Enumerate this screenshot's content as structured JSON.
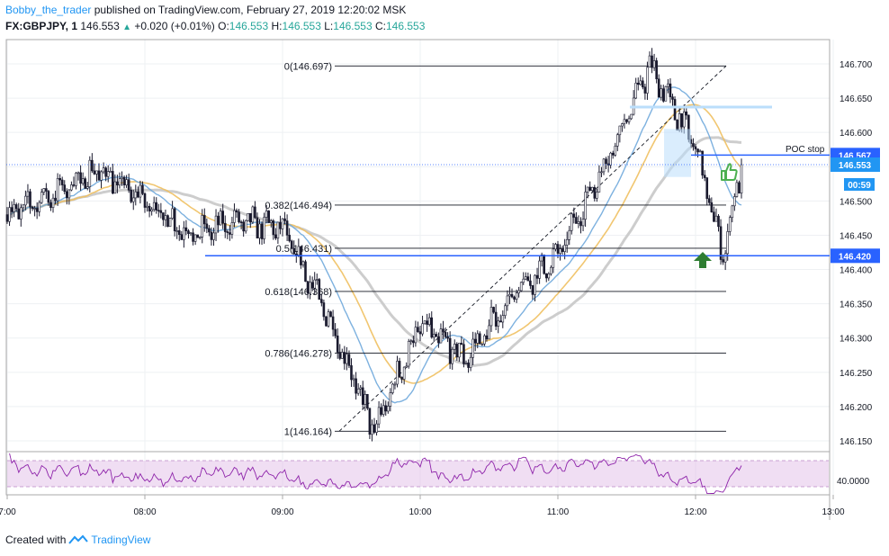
{
  "header": {
    "author": "Bobby_the_trader",
    "published_text": "published on TradingView.com, February 27, 2019 12:20:02 MSK",
    "symbol": "FX:GBPJPY, 1",
    "last": "146.553",
    "change": "+0.020 (+0.01%)",
    "o_label": "O:",
    "o_value": "146.553",
    "h_label": "H:",
    "h_value": "146.553",
    "l_label": "L:",
    "l_value": "146.553",
    "c_label": "C:",
    "c_value": "146.553"
  },
  "footer": {
    "created_with": "Created with",
    "brand": "TradingView"
  },
  "annotations": {
    "poc_stop": "POC stop"
  },
  "colors": {
    "candle_body": "#1a1a2e",
    "ma_fast": "#6fa8dc",
    "ma_mid": "#f0c060",
    "ma_slow": "#c8c8c8",
    "level_line": "#2962ff",
    "rsi_line": "#8e24aa",
    "rsi_band": "#e1bee7",
    "thumbs_up": "#4caf50",
    "arrow_up": "#2e7d32"
  },
  "chart_data": {
    "type": "candlestick",
    "symbol": "FX:GBPJPY",
    "timeframe": "1",
    "ylim": [
      146.13,
      146.74
    ],
    "y_ticks": [
      "146.700",
      "146.650",
      "146.600",
      "146.550",
      "146.500",
      "146.450",
      "146.400",
      "146.350",
      "146.300",
      "146.250",
      "146.200",
      "146.150"
    ],
    "x_ticks": [
      "7:00",
      "08:00",
      "09:00",
      "10:00",
      "11:00",
      "12:00",
      "13:00"
    ],
    "fib_levels": [
      {
        "label": "0(146.697)",
        "value": 146.697
      },
      {
        "label": "0.382(146.494)",
        "value": 146.494
      },
      {
        "label": "0.5(146.431)",
        "value": 146.431
      },
      {
        "label": "0.618(146.368)",
        "value": 146.368
      },
      {
        "label": "0.786(146.278)",
        "value": 146.278
      },
      {
        "label": "1(146.164)",
        "value": 146.164
      }
    ],
    "price_labels": [
      {
        "label": "146.567",
        "value": 146.567,
        "role": "POC stop level"
      },
      {
        "label": "146.553",
        "value": 146.553,
        "role": "last price"
      },
      {
        "label": "00:59",
        "value": 146.527,
        "role": "bar countdown"
      },
      {
        "label": "146.420",
        "value": 146.42,
        "role": "support level"
      }
    ],
    "price_path": [
      {
        "t": "07:00",
        "price": 146.48
      },
      {
        "t": "07:20",
        "price": 146.51
      },
      {
        "t": "07:40",
        "price": 146.545
      },
      {
        "t": "08:00",
        "price": 146.5
      },
      {
        "t": "08:20",
        "price": 146.45
      },
      {
        "t": "08:40",
        "price": 146.47
      },
      {
        "t": "09:00",
        "price": 146.46
      },
      {
        "t": "09:20",
        "price": 146.33
      },
      {
        "t": "09:40",
        "price": 146.164
      },
      {
        "t": "10:00",
        "price": 146.32
      },
      {
        "t": "10:20",
        "price": 146.27
      },
      {
        "t": "10:40",
        "price": 146.36
      },
      {
        "t": "11:00",
        "price": 146.42
      },
      {
        "t": "11:20",
        "price": 146.55
      },
      {
        "t": "11:40",
        "price": 146.697
      },
      {
        "t": "12:00",
        "price": 146.58
      },
      {
        "t": "12:12",
        "price": 146.42
      },
      {
        "t": "12:20",
        "price": 146.553
      }
    ],
    "indicator": {
      "name": "RSI",
      "tick": "40.0000"
    }
  }
}
